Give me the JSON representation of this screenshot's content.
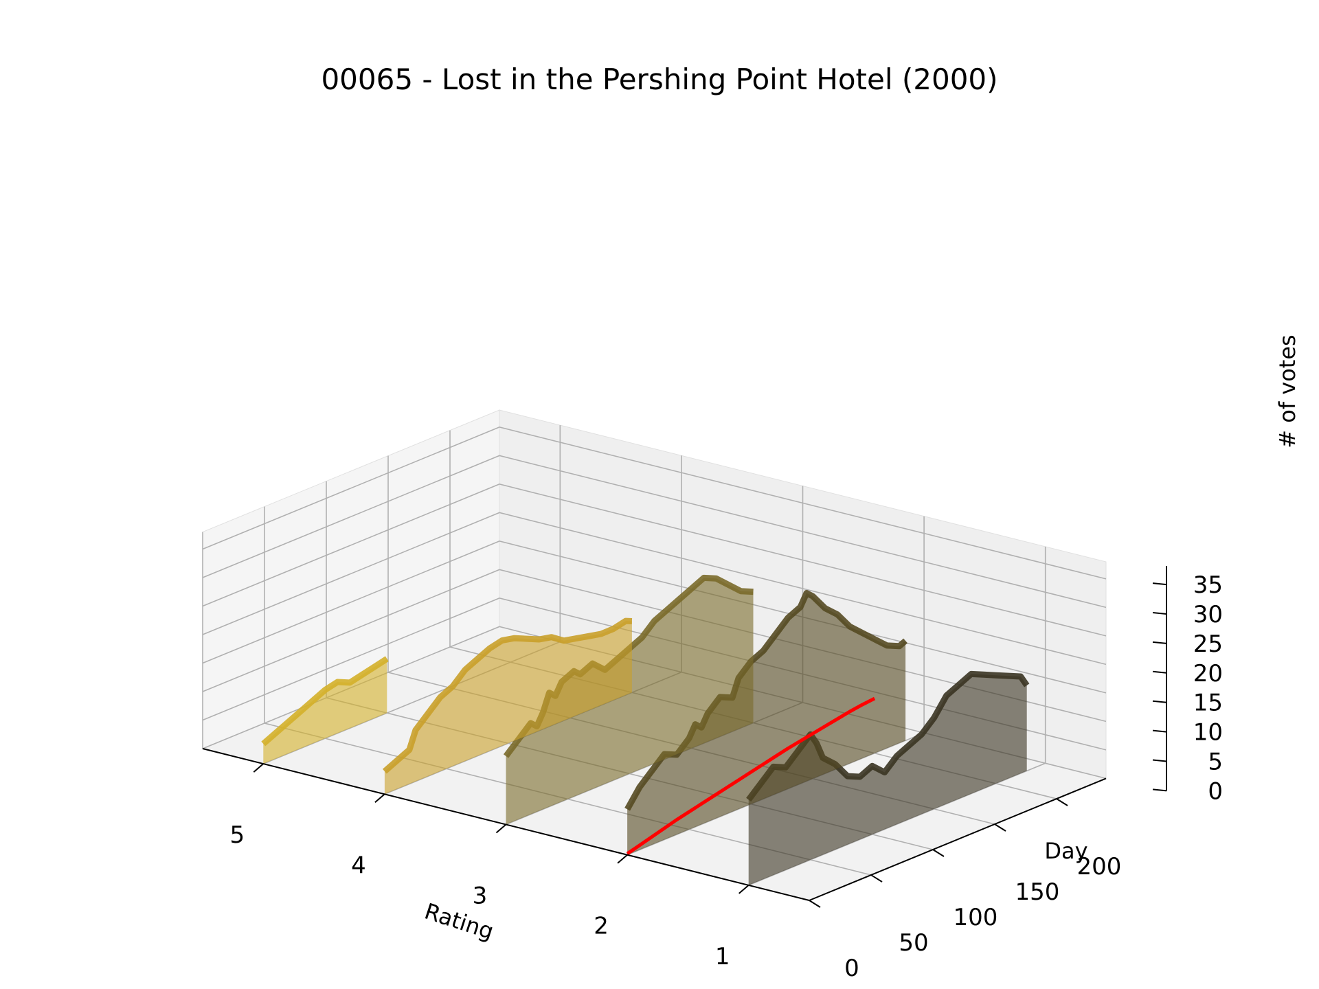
{
  "chart_data": {
    "type": "area",
    "title": "00065 - Lost in the Pershing Point Hotel (2000)",
    "xlabel": "Rating",
    "ylabel": "Day",
    "zlabel": "# of votes",
    "x_ticks": [
      "5",
      "4",
      "3",
      "2",
      "1"
    ],
    "y_ticks": [
      "0",
      "50",
      "100",
      "150",
      "200"
    ],
    "z_ticks": [
      "0",
      "5",
      "10",
      "15",
      "20",
      "25",
      "30",
      "35"
    ],
    "xlim": [
      0.5,
      5.5
    ],
    "ylim": [
      0,
      240
    ],
    "zlim": [
      0,
      38
    ],
    "grid": true,
    "series": [
      {
        "rating": 5,
        "color": "#d4b02a",
        "points": [
          [
            0,
            3.5
          ],
          [
            10,
            4.5
          ],
          [
            20,
            5.5
          ],
          [
            35,
            7
          ],
          [
            50,
            8.5
          ],
          [
            60,
            9
          ],
          [
            70,
            8
          ],
          [
            80,
            8.5
          ],
          [
            90,
            9
          ],
          [
            100,
            9.5
          ]
        ]
      },
      {
        "rating": 4,
        "color": "#c9a02a",
        "points": [
          [
            0,
            4
          ],
          [
            10,
            5
          ],
          [
            20,
            6
          ],
          [
            25,
            9
          ],
          [
            35,
            11
          ],
          [
            45,
            13
          ],
          [
            55,
            14
          ],
          [
            65,
            16
          ],
          [
            75,
            17
          ],
          [
            85,
            18
          ],
          [
            95,
            18.5
          ],
          [
            105,
            18
          ],
          [
            115,
            17
          ],
          [
            125,
            16
          ],
          [
            135,
            15.5
          ],
          [
            145,
            14
          ],
          [
            155,
            13.5
          ],
          [
            165,
            13
          ],
          [
            175,
            12.5
          ],
          [
            185,
            12.5
          ],
          [
            195,
            13
          ],
          [
            200,
            12.5
          ]
        ]
      },
      {
        "rating": 3,
        "color": "#7a6a2a",
        "points": [
          [
            0,
            12
          ],
          [
            10,
            14
          ],
          [
            20,
            16
          ],
          [
            25,
            15
          ],
          [
            30,
            17
          ],
          [
            35,
            20
          ],
          [
            40,
            19
          ],
          [
            45,
            21
          ],
          [
            55,
            22
          ],
          [
            60,
            21
          ],
          [
            70,
            22
          ],
          [
            80,
            20
          ],
          [
            90,
            21
          ],
          [
            100,
            22
          ],
          [
            110,
            23
          ],
          [
            120,
            25
          ],
          [
            130,
            26
          ],
          [
            140,
            27
          ],
          [
            150,
            28
          ],
          [
            160,
            29
          ],
          [
            170,
            28
          ],
          [
            180,
            26
          ],
          [
            190,
            24
          ],
          [
            200,
            23
          ]
        ]
      },
      {
        "rating": 2,
        "color": "#554a22",
        "points": [
          [
            0,
            8
          ],
          [
            10,
            11
          ],
          [
            20,
            13
          ],
          [
            30,
            15
          ],
          [
            40,
            14
          ],
          [
            50,
            16
          ],
          [
            55,
            18
          ],
          [
            60,
            17
          ],
          [
            65,
            19
          ],
          [
            75,
            21
          ],
          [
            85,
            20
          ],
          [
            90,
            23
          ],
          [
            95,
            24
          ],
          [
            100,
            25
          ],
          [
            110,
            26
          ],
          [
            120,
            28
          ],
          [
            130,
            30
          ],
          [
            140,
            31
          ],
          [
            145,
            33
          ],
          [
            150,
            32
          ],
          [
            160,
            29
          ],
          [
            170,
            27
          ],
          [
            180,
            24
          ],
          [
            190,
            22
          ],
          [
            200,
            20
          ],
          [
            210,
            18
          ],
          [
            220,
            17
          ],
          [
            225,
            17.5
          ]
        ]
      },
      {
        "rating": 1,
        "color": "#3a3422",
        "points": [
          [
            0,
            15
          ],
          [
            10,
            17
          ],
          [
            20,
            19
          ],
          [
            30,
            18
          ],
          [
            40,
            20
          ],
          [
            50,
            22
          ],
          [
            55,
            20
          ],
          [
            60,
            17
          ],
          [
            70,
            15
          ],
          [
            80,
            12
          ],
          [
            90,
            11
          ],
          [
            100,
            12
          ],
          [
            110,
            10
          ],
          [
            120,
            12
          ],
          [
            130,
            13
          ],
          [
            140,
            14
          ],
          [
            150,
            16
          ],
          [
            160,
            19
          ],
          [
            170,
            20
          ],
          [
            180,
            21
          ],
          [
            190,
            20
          ],
          [
            200,
            19
          ],
          [
            210,
            18
          ],
          [
            220,
            17
          ],
          [
            225,
            15
          ]
        ]
      },
      {
        "rating": 2,
        "color": "#ff0000",
        "kind": "line",
        "points": [
          [
            0,
            0.2
          ],
          [
            10,
            0.8
          ],
          [
            20,
            1.4
          ],
          [
            30,
            2
          ],
          [
            40,
            2.6
          ],
          [
            50,
            3.1
          ],
          [
            60,
            3.6
          ],
          [
            70,
            4.1
          ],
          [
            80,
            4.6
          ],
          [
            90,
            5.1
          ],
          [
            100,
            5.6
          ],
          [
            110,
            6.1
          ],
          [
            120,
            6.6
          ],
          [
            130,
            7.1
          ],
          [
            140,
            7.5
          ],
          [
            150,
            7.9
          ],
          [
            160,
            8.3
          ],
          [
            170,
            8.7
          ],
          [
            180,
            9.1
          ],
          [
            190,
            9.4
          ],
          [
            200,
            9.6
          ]
        ]
      }
    ]
  }
}
